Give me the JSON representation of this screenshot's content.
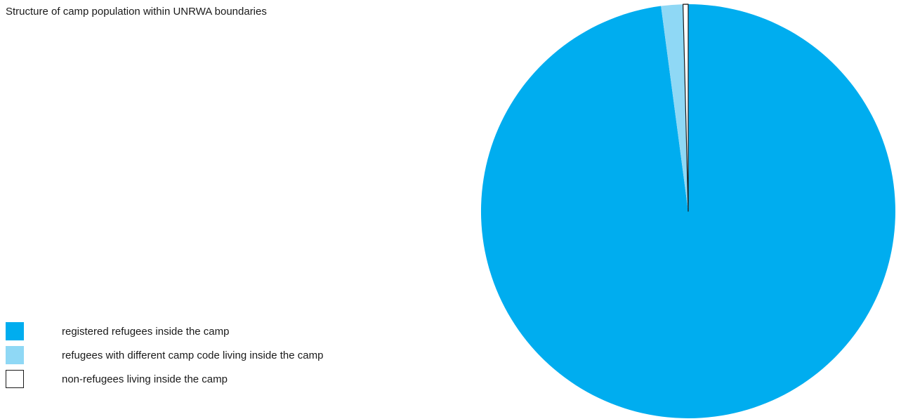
{
  "chart_data": {
    "type": "pie",
    "title": "Structure of camp population within UNRWA boundaries",
    "slices": [
      {
        "label": "registered refugees inside the camp",
        "value": 97.9,
        "color": "#00adef",
        "stroke": "none"
      },
      {
        "label": "refugees with different camp code living inside the camp",
        "value": 1.7,
        "color": "#8fd8f5",
        "stroke": "none"
      },
      {
        "label": "non-refugees living inside the camp",
        "value": 0.4,
        "color": "#ffffff",
        "stroke": "#1a1a1a"
      }
    ],
    "legend_position": "bottom-left"
  }
}
